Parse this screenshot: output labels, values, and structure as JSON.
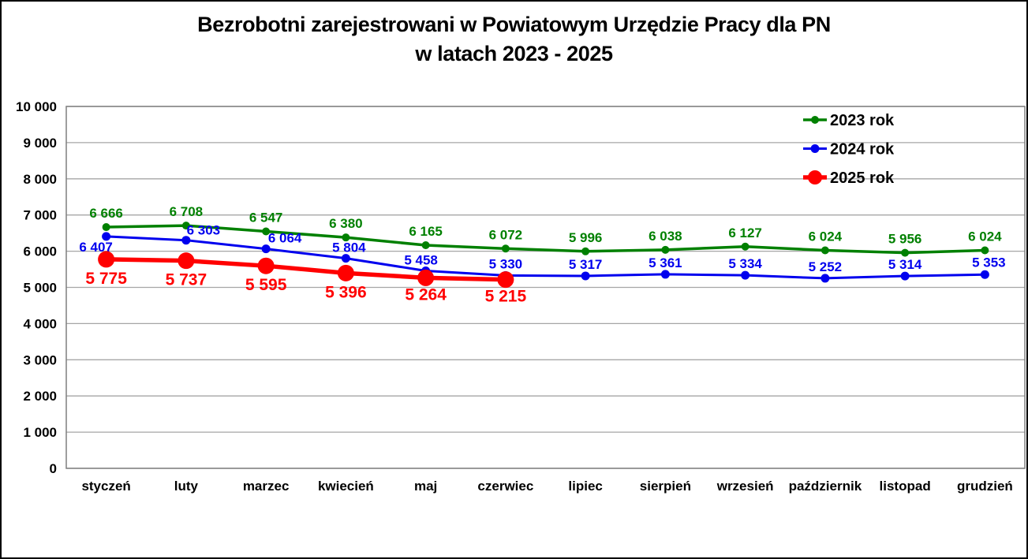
{
  "figure": {
    "title_line1": "Bezrobotni zarejestrowani w Powiatowym Urzędzie Pracy dla PN",
    "title_line2": "w latach 2023 - 2025"
  },
  "chart_data": {
    "type": "line",
    "title": "Bezrobotni zarejestrowani w Powiatowym Urzędzie Pracy dla PN w latach 2023 - 2025",
    "categories": [
      "styczeń",
      "luty",
      "marzec",
      "kwiecień",
      "maj",
      "czerwiec",
      "lipiec",
      "sierpień",
      "wrzesień",
      "październik",
      "listopad",
      "grudzień"
    ],
    "series": [
      {
        "name": "2023 rok",
        "color": "#008000",
        "values": [
          6666,
          6708,
          6547,
          6380,
          6165,
          6072,
          5996,
          6038,
          6127,
          6024,
          5956,
          6024
        ],
        "line_width": 3.5,
        "marker_radius": 5,
        "label_font_size": 17,
        "label_default_offset": [
          0,
          -12
        ],
        "label_offsets": {}
      },
      {
        "name": "2024 rok",
        "color": "#0000ee",
        "values": [
          6407,
          6303,
          6064,
          5804,
          5458,
          5330,
          5317,
          5361,
          5334,
          5252,
          5314,
          5353
        ],
        "line_width": 3,
        "marker_radius": 5.5,
        "label_font_size": 17,
        "label_default_offset": [
          0,
          -9
        ],
        "label_offsets": {
          "0": [
            -13,
            19
          ],
          "1": [
            22,
            -7
          ],
          "2": [
            24,
            -8
          ],
          "3": [
            4,
            -8
          ],
          "4": [
            -6,
            -8
          ],
          "11": [
            5,
            -10
          ]
        }
      },
      {
        "name": "2025 rok",
        "color": "#ff0000",
        "values": [
          5775,
          5737,
          5595,
          5396,
          5264,
          5215,
          null,
          null,
          null,
          null,
          null,
          null
        ],
        "line_width": 5.5,
        "marker_radius": 10.5,
        "label_font_size": 21,
        "label_default_offset": [
          0,
          31
        ],
        "label_offsets": {
          "4": [
            0,
            28
          ],
          "5": [
            0,
            28
          ]
        }
      }
    ],
    "ylim": [
      0,
      10000
    ],
    "ytick_step": 1000,
    "ytick_labels": [
      "0",
      "1 000",
      "2 000",
      "3 000",
      "4 000",
      "5 000",
      "6 000",
      "7 000",
      "8 000",
      "9 000",
      "10 000"
    ],
    "grid": true,
    "gridline_color": "#a6a6a6",
    "plot_border_color": "#7f7f7f",
    "axis_text_color": "#000000",
    "legend_position": "upper-right",
    "legend": [
      "2023 rok",
      "2024 rok",
      "2025 rok"
    ]
  }
}
